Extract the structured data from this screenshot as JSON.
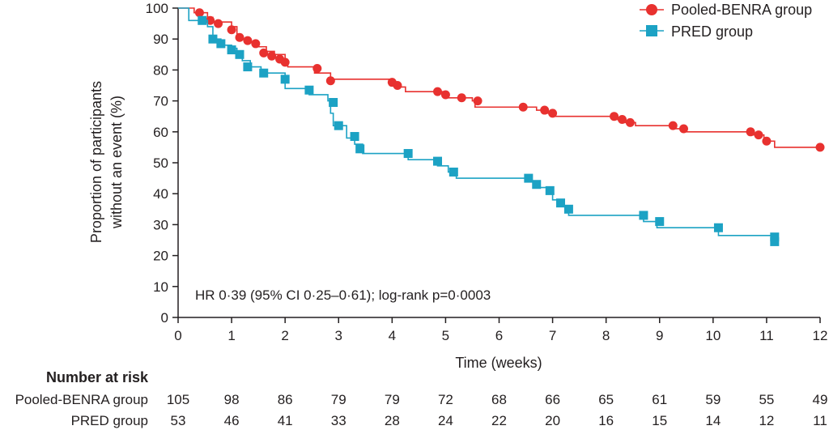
{
  "chart_data": {
    "type": "line",
    "subtype": "kaplan-meier",
    "xlabel": "Time (weeks)",
    "ylabel_line1": "Proportion of participants",
    "ylabel_line2": "without an event (%)",
    "xlim": [
      0,
      12
    ],
    "ylim": [
      0,
      100
    ],
    "x_ticks": [
      0,
      1,
      2,
      3,
      4,
      5,
      6,
      7,
      8,
      9,
      10,
      11,
      12
    ],
    "y_ticks": [
      0,
      10,
      20,
      30,
      40,
      50,
      60,
      70,
      80,
      90,
      100
    ],
    "grid": false,
    "legend_position": "top-right",
    "annotation": "HR 0·39 (95% CI 0·25–0·61); log-rank p=0·0003",
    "series": [
      {
        "name": "Pooled-BENRA group",
        "color": "#e8312f",
        "marker": "circle",
        "steps": [
          [
            0,
            100
          ],
          [
            0.3,
            98.5
          ],
          [
            0.55,
            97
          ],
          [
            0.65,
            95.5
          ],
          [
            1.0,
            94
          ],
          [
            1.1,
            91
          ],
          [
            1.2,
            90
          ],
          [
            1.3,
            89
          ],
          [
            1.45,
            87.5
          ],
          [
            1.65,
            86
          ],
          [
            1.8,
            85
          ],
          [
            2.0,
            84
          ],
          [
            2.0,
            82
          ],
          [
            2.05,
            81
          ],
          [
            2.55,
            79
          ],
          [
            2.85,
            77
          ],
          [
            4.0,
            76
          ],
          [
            4.1,
            74.5
          ],
          [
            4.25,
            73
          ],
          [
            5.0,
            71
          ],
          [
            5.5,
            70
          ],
          [
            5.55,
            68
          ],
          [
            6.7,
            67
          ],
          [
            6.85,
            66
          ],
          [
            7.05,
            65
          ],
          [
            8.15,
            64
          ],
          [
            8.35,
            63
          ],
          [
            8.55,
            62
          ],
          [
            9.25,
            61
          ],
          [
            9.45,
            60
          ],
          [
            10.75,
            59
          ],
          [
            10.95,
            57
          ],
          [
            11.15,
            55
          ],
          [
            12.0,
            55
          ]
        ],
        "censored": [
          [
            0.4,
            98.5
          ],
          [
            0.6,
            96
          ],
          [
            0.75,
            95
          ],
          [
            1.0,
            93
          ],
          [
            1.15,
            90.5
          ],
          [
            1.3,
            89.5
          ],
          [
            1.45,
            88.5
          ],
          [
            1.6,
            85.5
          ],
          [
            1.75,
            84.5
          ],
          [
            1.9,
            83.5
          ],
          [
            2.0,
            82.5
          ],
          [
            2.6,
            80.5
          ],
          [
            2.85,
            76.5
          ],
          [
            4.0,
            76
          ],
          [
            4.1,
            75
          ],
          [
            4.85,
            73
          ],
          [
            5.0,
            72
          ],
          [
            5.3,
            71
          ],
          [
            5.6,
            70
          ],
          [
            6.45,
            68
          ],
          [
            6.85,
            67
          ],
          [
            7.0,
            66
          ],
          [
            8.15,
            65
          ],
          [
            8.3,
            64
          ],
          [
            8.45,
            63
          ],
          [
            9.25,
            62
          ],
          [
            9.45,
            61
          ],
          [
            10.7,
            60
          ],
          [
            10.85,
            59
          ],
          [
            11.0,
            57
          ],
          [
            12.0,
            55
          ]
        ]
      },
      {
        "name": "PRED group",
        "color": "#1ca2c4",
        "marker": "square",
        "steps": [
          [
            0,
            100
          ],
          [
            0.2,
            96
          ],
          [
            0.55,
            94
          ],
          [
            0.65,
            90
          ],
          [
            0.8,
            88
          ],
          [
            1.0,
            87
          ],
          [
            1.1,
            85
          ],
          [
            1.2,
            83
          ],
          [
            1.35,
            81
          ],
          [
            1.55,
            79
          ],
          [
            2.0,
            77
          ],
          [
            2.0,
            74
          ],
          [
            2.45,
            72
          ],
          [
            2.8,
            70
          ],
          [
            2.85,
            66
          ],
          [
            2.9,
            62
          ],
          [
            3.15,
            58
          ],
          [
            3.3,
            56
          ],
          [
            3.45,
            53
          ],
          [
            4.3,
            51
          ],
          [
            4.85,
            49
          ],
          [
            5.05,
            47
          ],
          [
            5.2,
            45
          ],
          [
            6.55,
            44
          ],
          [
            6.7,
            42
          ],
          [
            6.95,
            40
          ],
          [
            7.0,
            38
          ],
          [
            7.1,
            36
          ],
          [
            7.3,
            33
          ],
          [
            8.7,
            31
          ],
          [
            8.95,
            29
          ],
          [
            10.1,
            26.5
          ],
          [
            11.15,
            26.5
          ]
        ],
        "censored": [
          [
            0.45,
            96
          ],
          [
            0.65,
            90
          ],
          [
            0.8,
            88.5
          ],
          [
            1.0,
            86.5
          ],
          [
            1.15,
            85
          ],
          [
            1.3,
            81
          ],
          [
            1.6,
            79
          ],
          [
            2.0,
            77
          ],
          [
            2.45,
            73.5
          ],
          [
            2.9,
            69.5
          ],
          [
            3.0,
            62
          ],
          [
            3.3,
            58.5
          ],
          [
            3.4,
            54.5
          ],
          [
            4.3,
            53
          ],
          [
            4.85,
            50.5
          ],
          [
            5.15,
            47
          ],
          [
            6.55,
            45
          ],
          [
            6.7,
            43
          ],
          [
            6.95,
            41
          ],
          [
            7.15,
            37
          ],
          [
            7.3,
            35
          ],
          [
            8.7,
            33
          ],
          [
            9.0,
            31
          ],
          [
            10.1,
            29
          ],
          [
            11.15,
            26
          ],
          [
            11.15,
            24.5
          ]
        ]
      }
    ],
    "risk_table": {
      "title": "Number at risk",
      "rows": [
        {
          "label": "Pooled-BENRA group",
          "values": [
            "105",
            "98",
            "86",
            "79",
            "79",
            "72",
            "68",
            "66",
            "65",
            "61",
            "59",
            "55",
            "49"
          ]
        },
        {
          "label": "PRED group",
          "values": [
            "53",
            "46",
            "41",
            "33",
            "28",
            "24",
            "22",
            "20",
            "16",
            "15",
            "14",
            "12",
            "11"
          ]
        }
      ]
    }
  }
}
